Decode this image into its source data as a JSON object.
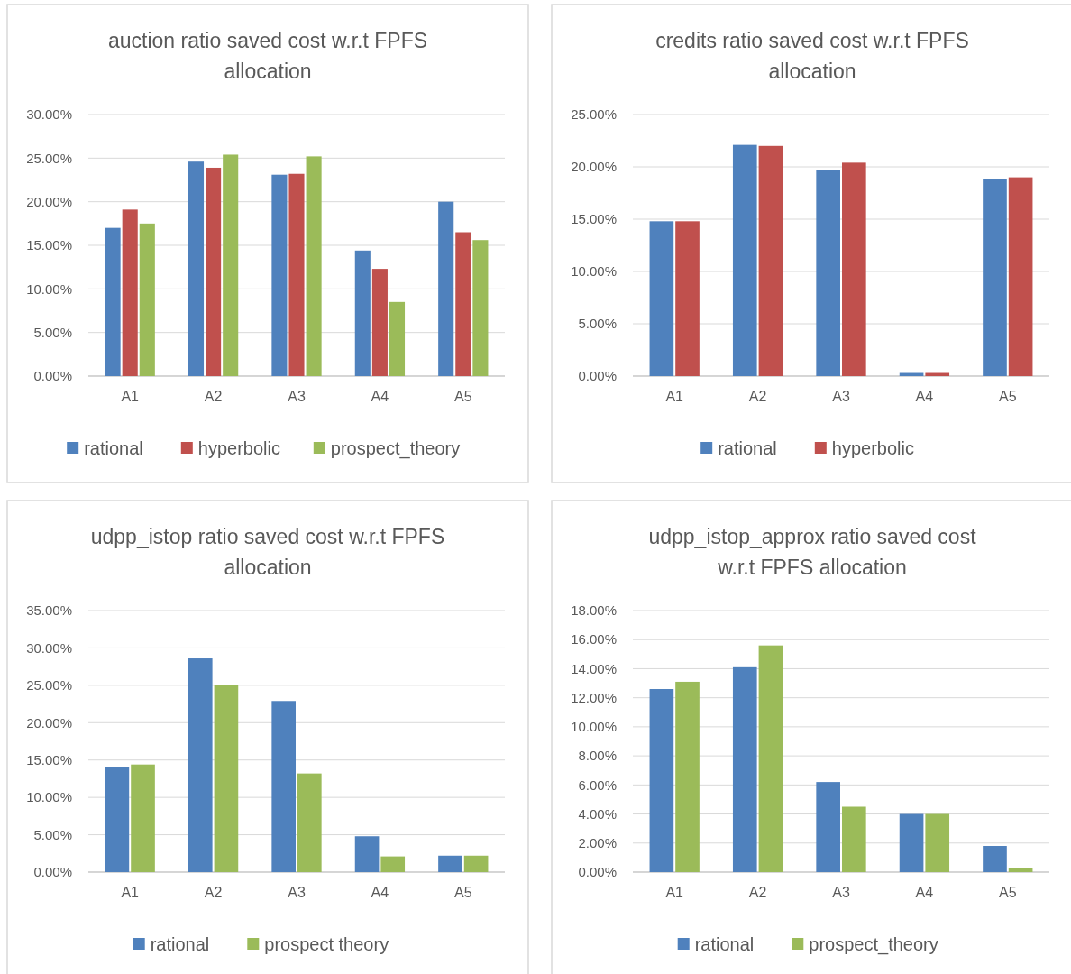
{
  "chart_data": [
    {
      "type": "bar",
      "title": "auction ratio saved cost w.r.t FPFS allocation",
      "categories": [
        "A1",
        "A2",
        "A3",
        "A4",
        "A5"
      ],
      "series": [
        {
          "name": "rational",
          "color": "#4f81bd",
          "values": [
            17.0,
            24.6,
            23.1,
            14.4,
            20.0
          ]
        },
        {
          "name": "hyperbolic",
          "color": "#c0504d",
          "values": [
            19.1,
            23.9,
            23.2,
            12.3,
            16.5
          ]
        },
        {
          "name": "prospect_theory",
          "color": "#9bbb59",
          "values": [
            17.5,
            25.4,
            25.2,
            8.5,
            15.6
          ]
        }
      ],
      "ylim": [
        0,
        30
      ],
      "yticks": [
        {
          "value": 0,
          "label": "0.00%"
        },
        {
          "value": 5,
          "label": "5.00%"
        },
        {
          "value": 10,
          "label": "10.00%"
        },
        {
          "value": 15,
          "label": "15.00%"
        },
        {
          "value": 20,
          "label": "20.00%"
        },
        {
          "value": 25,
          "label": "25.00%"
        },
        {
          "value": 30,
          "label": "30.00%"
        }
      ],
      "grid": "y",
      "legend": "bottom"
    },
    {
      "type": "bar",
      "title": "credits ratio saved cost w.r.t FPFS allocation",
      "categories": [
        "A1",
        "A2",
        "A3",
        "A4",
        "A5"
      ],
      "series": [
        {
          "name": "rational",
          "color": "#4f81bd",
          "values": [
            14.8,
            22.1,
            19.7,
            0.3,
            18.8
          ]
        },
        {
          "name": "hyperbolic",
          "color": "#c0504d",
          "values": [
            14.8,
            22.0,
            20.4,
            0.3,
            19.0
          ]
        }
      ],
      "ylim": [
        0,
        25
      ],
      "yticks": [
        {
          "value": 0,
          "label": "0.00%"
        },
        {
          "value": 5,
          "label": "5.00%"
        },
        {
          "value": 10,
          "label": "10.00%"
        },
        {
          "value": 15,
          "label": "15.00%"
        },
        {
          "value": 20,
          "label": "20.00%"
        },
        {
          "value": 25,
          "label": "25.00%"
        }
      ],
      "grid": "y",
      "legend": "bottom"
    },
    {
      "type": "bar",
      "title": "udpp_istop ratio saved cost w.r.t FPFS allocation",
      "categories": [
        "A1",
        "A2",
        "A3",
        "A4",
        "A5"
      ],
      "series": [
        {
          "name": "rational",
          "color": "#4f81bd",
          "values": [
            14.0,
            28.6,
            22.9,
            4.8,
            2.2
          ]
        },
        {
          "name": "prospect theory",
          "color": "#9bbb59",
          "values": [
            14.4,
            25.1,
            13.2,
            2.1,
            2.2
          ]
        }
      ],
      "ylim": [
        0,
        35
      ],
      "yticks": [
        {
          "value": 0,
          "label": "0.00%"
        },
        {
          "value": 5,
          "label": "5.00%"
        },
        {
          "value": 10,
          "label": "10.00%"
        },
        {
          "value": 15,
          "label": "15.00%"
        },
        {
          "value": 20,
          "label": "20.00%"
        },
        {
          "value": 25,
          "label": "25.00%"
        },
        {
          "value": 30,
          "label": "30.00%"
        },
        {
          "value": 35,
          "label": "35.00%"
        }
      ],
      "grid": "y",
      "legend": "bottom"
    },
    {
      "type": "bar",
      "title": "udpp_istop_approx ratio saved cost w.r.t FPFS allocation",
      "categories": [
        "A1",
        "A2",
        "A3",
        "A4",
        "A5"
      ],
      "series": [
        {
          "name": "rational",
          "color": "#4f81bd",
          "values": [
            12.6,
            14.1,
            6.2,
            4.0,
            1.8
          ]
        },
        {
          "name": "prospect_theory",
          "color": "#9bbb59",
          "values": [
            13.1,
            15.6,
            4.5,
            4.0,
            0.3
          ]
        }
      ],
      "ylim": [
        0,
        18
      ],
      "yticks": [
        {
          "value": 0,
          "label": "0.00%"
        },
        {
          "value": 2,
          "label": "2.00%"
        },
        {
          "value": 4,
          "label": "4.00%"
        },
        {
          "value": 6,
          "label": "6.00%"
        },
        {
          "value": 8,
          "label": "8.00%"
        },
        {
          "value": 10,
          "label": "10.00%"
        },
        {
          "value": 12,
          "label": "12.00%"
        },
        {
          "value": 14,
          "label": "14.00%"
        },
        {
          "value": 16,
          "label": "16.00%"
        },
        {
          "value": 18,
          "label": "18.00%"
        }
      ],
      "grid": "y",
      "legend": "bottom"
    }
  ]
}
